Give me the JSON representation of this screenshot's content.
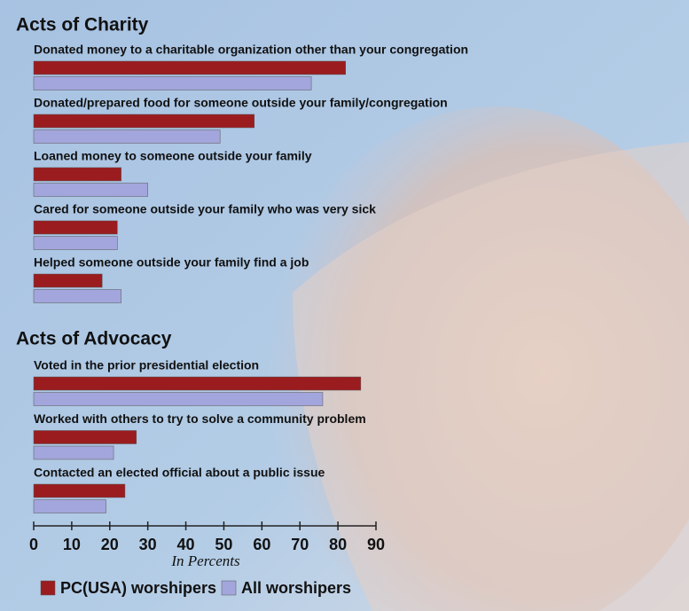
{
  "chart_data": [
    {
      "type": "bar",
      "orientation": "horizontal",
      "title": "Acts of Charity",
      "categories": [
        "Donated money to a charitable organization other than your congregation",
        "Donated/prepared food for someone outside your family/congregation",
        "Loaned money to someone outside your family",
        "Cared for someone outside your family who was very sick",
        "Helped someone outside your family find a job"
      ],
      "series": [
        {
          "color": "#9b1c1f",
          "values": [
            82,
            58,
            23,
            22,
            18
          ]
        },
        {
          "color": "#a3a6dc",
          "values": [
            73,
            49,
            30,
            22,
            23
          ]
        }
      ]
    },
    {
      "type": "bar",
      "orientation": "horizontal",
      "title": "Acts of Advocacy",
      "categories": [
        "Voted in the prior presidential election",
        "Worked with others to try to solve a community problem",
        "Contacted an elected official about a public issue"
      ],
      "series": [
        {
          "name": "PC(USA) worshipers",
          "color": "#9b1c1f",
          "values": [
            86,
            27,
            24
          ]
        },
        {
          "name": "All worshipers",
          "color": "#a3a6dc",
          "values": [
            76,
            21,
            19
          ]
        }
      ],
      "xlabel": "In Percents",
      "xlim": [
        0,
        90
      ],
      "xticks": [
        0,
        10,
        20,
        30,
        40,
        50,
        60,
        70,
        80,
        90
      ]
    }
  ]
}
